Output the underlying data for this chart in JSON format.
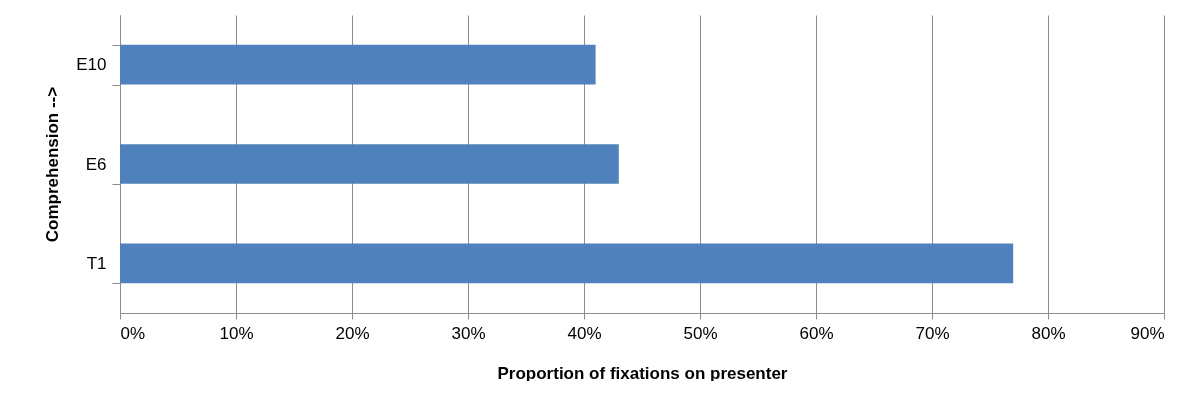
{
  "chart_data": {
    "type": "bar",
    "orientation": "horizontal",
    "xlabel": "Proportion of fixations on presenter",
    "ylabel": "Comprehension -->",
    "categories": [
      "E10",
      "E6",
      "T1"
    ],
    "values": [
      41,
      43,
      77
    ],
    "color": "#4f81bd",
    "xlim": [
      0,
      90
    ],
    "xticks": [
      {
        "value": 0,
        "label": "0%"
      },
      {
        "value": 10,
        "label": "10%"
      },
      {
        "value": 20,
        "label": "20%"
      },
      {
        "value": 30,
        "label": "30%"
      },
      {
        "value": 40,
        "label": "40%"
      },
      {
        "value": 50,
        "label": "50%"
      },
      {
        "value": 60,
        "label": "60%"
      },
      {
        "value": 70,
        "label": "70%"
      },
      {
        "value": 80,
        "label": "80%"
      },
      {
        "value": 90,
        "label": "90%"
      }
    ],
    "grid": "x"
  }
}
